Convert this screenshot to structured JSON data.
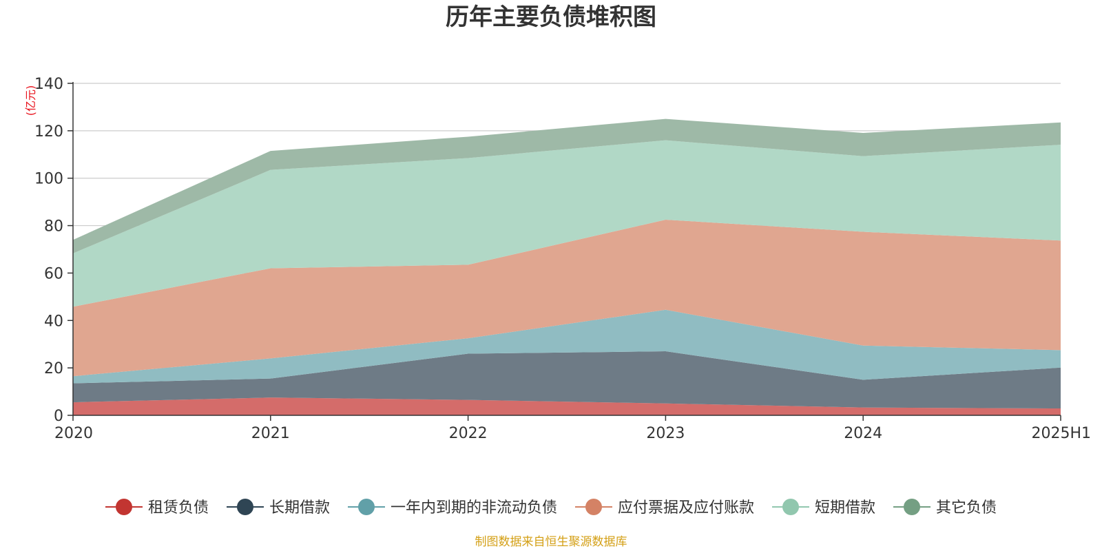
{
  "chart_data": {
    "type": "area",
    "stacked": true,
    "title": "历年主要负债堆积图",
    "unit_label": "(亿元)",
    "categories": [
      "2020",
      "2021",
      "2022",
      "2023",
      "2024",
      "2025H1"
    ],
    "ylim": [
      0,
      140
    ],
    "yticks": [
      "0",
      "20",
      "40",
      "60",
      "80",
      "100",
      "120",
      "140"
    ],
    "grid": true,
    "legend_position": "bottom",
    "series": [
      {
        "name": "租赁负债",
        "color": "#c23531",
        "fill": "#d46c6a",
        "values": [
          5.5,
          7.5,
          6.5,
          5,
          3.3,
          2.9
        ]
      },
      {
        "name": "长期借款",
        "color": "#2f4554",
        "fill": "#6e7b86",
        "values": [
          8,
          8,
          19.5,
          22,
          11.7,
          17.2
        ]
      },
      {
        "name": "一年内到期的非流动负债",
        "color": "#61a0a8",
        "fill": "#90bcc2",
        "values": [
          3,
          8.5,
          6.5,
          17.5,
          14.4,
          7.4
        ]
      },
      {
        "name": "应付票据及应付账款",
        "color": "#d48265",
        "fill": "#e0a690",
        "values": [
          29.3,
          38,
          31,
          38,
          48,
          46.2
        ]
      },
      {
        "name": "短期借款",
        "color": "#91c7ae",
        "fill": "#b1d8c6",
        "values": [
          22.5,
          41.5,
          45,
          33.5,
          31.9,
          40.4
        ]
      },
      {
        "name": "其它负债",
        "color": "#749f83",
        "fill": "#9eb9a7",
        "values": [
          5.7,
          8,
          9,
          9,
          9.8,
          9.4
        ]
      }
    ]
  },
  "source_note": "制图数据来自恒生聚源数据库",
  "colors": {
    "unit_label": "#e8101a",
    "source_note": "#d4a017",
    "axis": "#333333",
    "grid": "#cccccc"
  }
}
